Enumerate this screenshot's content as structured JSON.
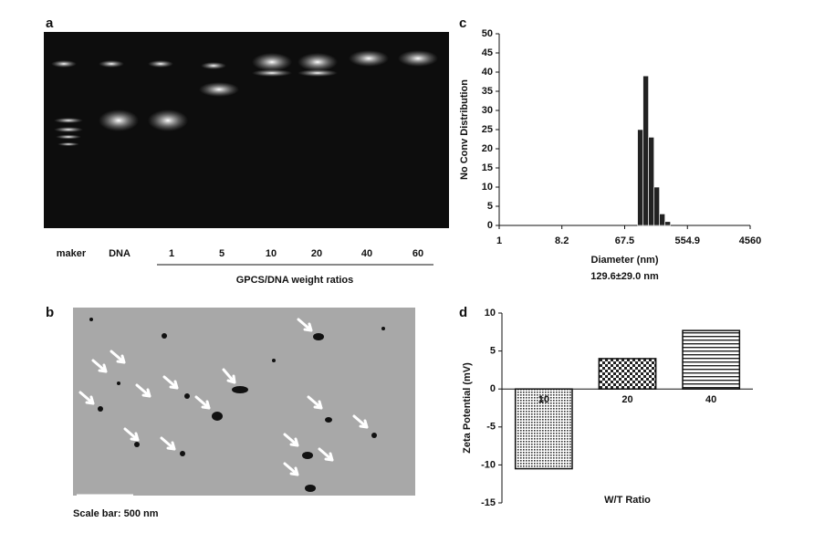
{
  "panel_labels": {
    "a": "a",
    "b": "b"
  },
  "gel": {
    "lanes": [
      "maker",
      "DNA",
      "1",
      "5",
      "10",
      "20",
      "40",
      "60"
    ],
    "caption": "GPCS/DNA weight ratios"
  },
  "tem": {
    "scale_bar": "Scale bar: 500 nm"
  },
  "chart_data": [
    {
      "type": "bar",
      "panel_label": "c",
      "xscale": "log",
      "x": [
        114,
        137,
        165,
        198,
        238,
        286
      ],
      "values": [
        25,
        39,
        23,
        10,
        3,
        1
      ],
      "color": "#222222",
      "xlim": [
        1,
        4560
      ],
      "xticks": [
        1,
        8.2,
        67.5,
        554.9,
        4560
      ],
      "ylim": [
        0,
        50
      ],
      "yticks": [
        0,
        5,
        10,
        15,
        20,
        25,
        30,
        35,
        40,
        45,
        50
      ],
      "ylabel": "No Conv Distribution",
      "xlabel": "Diameter (nm)",
      "annotation": "129.6±29.0 nm"
    },
    {
      "type": "bar",
      "panel_label": "d",
      "categories": [
        "10",
        "20",
        "40"
      ],
      "values": [
        -10.5,
        4.0,
        7.7
      ],
      "patterns": [
        "dots",
        "checker",
        "stripes"
      ],
      "ylim": [
        -15,
        10
      ],
      "yticks": [
        -15,
        -10,
        -5,
        0,
        5,
        10
      ],
      "ylabel": "Zeta Potential (mV)",
      "xlabel": "W/T Ratio"
    }
  ]
}
